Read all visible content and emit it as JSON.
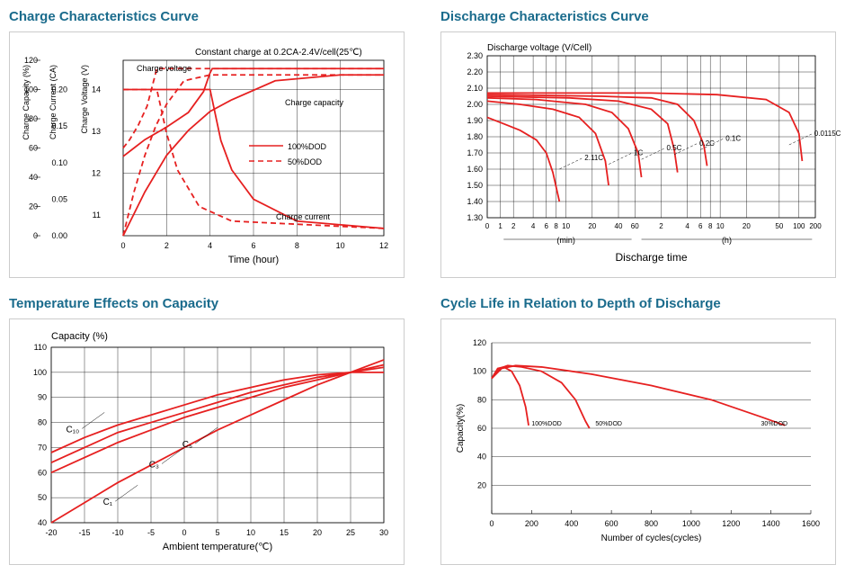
{
  "colors": {
    "title": "#1a6b8c",
    "curve": "#e62020",
    "axis": "#000000",
    "grid": "#000000",
    "border": "#cccccc",
    "bg": "#ffffff"
  },
  "charge": {
    "title": "Charge Characteristics Curve",
    "subtitle": "Constant charge at 0.2CA-2.4V/cell(25℃)",
    "y_labels": [
      "Charge Capacity (%)",
      "Charge Current (CA)",
      "Charge Voltage (V)"
    ],
    "x_label": "Time (hour)",
    "x_ticks": [
      0,
      2,
      4,
      6,
      8,
      10,
      12
    ],
    "cap_ticks": [
      0,
      20,
      40,
      60,
      80,
      100,
      120
    ],
    "cur_ticks": [
      0,
      0.05,
      0.1,
      0.15,
      0.2
    ],
    "volt_ticks": [
      11,
      12,
      13,
      14
    ],
    "labels": {
      "cv": "Charge voltage",
      "cc": "Charge capacity",
      "ci": "Charge current"
    },
    "legend": [
      "100%DOD",
      "50%DOD"
    ],
    "curves": {
      "cap100": [
        [
          0,
          0
        ],
        [
          1,
          30
        ],
        [
          2,
          55
        ],
        [
          3,
          72
        ],
        [
          4,
          85
        ],
        [
          5,
          93
        ],
        [
          7,
          106
        ],
        [
          10,
          110
        ],
        [
          12,
          110
        ]
      ],
      "cap50": [
        [
          0,
          0
        ],
        [
          0.5,
          30
        ],
        [
          1,
          55
        ],
        [
          1.5,
          75
        ],
        [
          2,
          90
        ],
        [
          2.8,
          106
        ],
        [
          4,
          110
        ],
        [
          12,
          110
        ]
      ],
      "volt100": [
        [
          0,
          12.4
        ],
        [
          0.5,
          12.6
        ],
        [
          1,
          12.8
        ],
        [
          2,
          13.1
        ],
        [
          3,
          13.45
        ],
        [
          3.7,
          13.95
        ],
        [
          4,
          14.4
        ],
        [
          4.1,
          14.5
        ],
        [
          12,
          14.5
        ]
      ],
      "volt50": [
        [
          0,
          12.6
        ],
        [
          0.3,
          12.8
        ],
        [
          0.7,
          13.15
        ],
        [
          1.1,
          13.6
        ],
        [
          1.4,
          14.2
        ],
        [
          1.55,
          14.5
        ],
        [
          12,
          14.5
        ]
      ],
      "cur100": [
        [
          0,
          0.2
        ],
        [
          4,
          0.2
        ],
        [
          4.5,
          0.13
        ],
        [
          5,
          0.09
        ],
        [
          6,
          0.05
        ],
        [
          8,
          0.02
        ],
        [
          12,
          0.01
        ]
      ],
      "cur50": [
        [
          0,
          0.2
        ],
        [
          1.55,
          0.2
        ],
        [
          2,
          0.14
        ],
        [
          2.5,
          0.09
        ],
        [
          3.5,
          0.04
        ],
        [
          5,
          0.02
        ],
        [
          12,
          0.01
        ]
      ]
    }
  },
  "discharge": {
    "title": "Discharge Characteristics Curve",
    "y_label": "Discharge voltage (V/Cell)",
    "x_label": "Discharge time",
    "x_sublabels": [
      "(min)",
      "(h)"
    ],
    "y_ticks": [
      1.3,
      1.4,
      1.5,
      1.6,
      1.7,
      1.8,
      1.9,
      2.0,
      2.1,
      2.2,
      2.3
    ],
    "x_tick_labels": [
      "0",
      "1",
      "2",
      "4",
      "6",
      "8",
      "10",
      "20",
      "40",
      "60",
      "2",
      "4",
      "6",
      "8",
      "10",
      "20",
      "50",
      "100",
      "200"
    ],
    "x_tick_pos": [
      0,
      0.04,
      0.08,
      0.14,
      0.18,
      0.21,
      0.24,
      0.32,
      0.4,
      0.45,
      0.53,
      0.61,
      0.65,
      0.68,
      0.71,
      0.79,
      0.89,
      0.95,
      1.0
    ],
    "curve_labels": [
      {
        "t": "2.11C",
        "p": 0.22
      },
      {
        "t": "1C",
        "p": 0.37
      },
      {
        "t": "0.5C",
        "p": 0.47
      },
      {
        "t": "0.2C",
        "p": 0.57
      },
      {
        "t": "0.1C",
        "p": 0.65
      },
      {
        "t": "0.0115C",
        "p": 0.92
      }
    ],
    "curves": [
      [
        [
          0,
          1.92
        ],
        [
          0.05,
          1.88
        ],
        [
          0.1,
          1.84
        ],
        [
          0.15,
          1.78
        ],
        [
          0.18,
          1.7
        ],
        [
          0.2,
          1.58
        ],
        [
          0.22,
          1.4
        ]
      ],
      [
        [
          0,
          2.02
        ],
        [
          0.1,
          2.0
        ],
        [
          0.2,
          1.97
        ],
        [
          0.28,
          1.92
        ],
        [
          0.33,
          1.82
        ],
        [
          0.36,
          1.65
        ],
        [
          0.37,
          1.5
        ]
      ],
      [
        [
          0,
          2.04
        ],
        [
          0.15,
          2.03
        ],
        [
          0.3,
          2.0
        ],
        [
          0.38,
          1.95
        ],
        [
          0.43,
          1.85
        ],
        [
          0.46,
          1.7
        ],
        [
          0.47,
          1.55
        ]
      ],
      [
        [
          0,
          2.05
        ],
        [
          0.25,
          2.04
        ],
        [
          0.4,
          2.02
        ],
        [
          0.5,
          1.97
        ],
        [
          0.55,
          1.88
        ],
        [
          0.57,
          1.72
        ],
        [
          0.58,
          1.58
        ]
      ],
      [
        [
          0,
          2.06
        ],
        [
          0.35,
          2.05
        ],
        [
          0.5,
          2.04
        ],
        [
          0.58,
          2.0
        ],
        [
          0.63,
          1.9
        ],
        [
          0.66,
          1.75
        ],
        [
          0.67,
          1.62
        ]
      ],
      [
        [
          0,
          2.07
        ],
        [
          0.5,
          2.07
        ],
        [
          0.7,
          2.06
        ],
        [
          0.85,
          2.03
        ],
        [
          0.92,
          1.95
        ],
        [
          0.95,
          1.82
        ],
        [
          0.96,
          1.65
        ]
      ]
    ]
  },
  "temp": {
    "title": "Temperature Effects on Capacity",
    "y_label": "Capacity (%)",
    "x_label": "Ambient temperature(℃)",
    "x_ticks": [
      -20,
      -15,
      -10,
      -5,
      0,
      5,
      10,
      15,
      20,
      25,
      30
    ],
    "y_ticks": [
      40,
      50,
      60,
      70,
      80,
      90,
      100,
      110
    ],
    "curve_labels": [
      "C₁₀",
      "C₅",
      "C₃",
      "C₁"
    ],
    "curves": {
      "C10": [
        [
          -20,
          68
        ],
        [
          -15,
          74
        ],
        [
          -10,
          79
        ],
        [
          -5,
          83
        ],
        [
          0,
          87
        ],
        [
          5,
          91
        ],
        [
          10,
          94
        ],
        [
          15,
          97
        ],
        [
          20,
          99
        ],
        [
          25,
          100
        ],
        [
          30,
          105
        ]
      ],
      "C5": [
        [
          -20,
          64
        ],
        [
          -15,
          70
        ],
        [
          -10,
          76
        ],
        [
          -5,
          80
        ],
        [
          0,
          84
        ],
        [
          5,
          88
        ],
        [
          10,
          92
        ],
        [
          15,
          95
        ],
        [
          20,
          98
        ],
        [
          25,
          100
        ],
        [
          30,
          103
        ]
      ],
      "C3": [
        [
          -20,
          60
        ],
        [
          -15,
          66
        ],
        [
          -10,
          72
        ],
        [
          -5,
          77
        ],
        [
          0,
          82
        ],
        [
          5,
          86
        ],
        [
          10,
          90
        ],
        [
          15,
          94
        ],
        [
          20,
          97
        ],
        [
          25,
          100
        ],
        [
          30,
          102
        ]
      ],
      "C1": [
        [
          -20,
          40
        ],
        [
          -15,
          48
        ],
        [
          -10,
          56
        ],
        [
          -5,
          63
        ],
        [
          0,
          70
        ],
        [
          5,
          77
        ],
        [
          10,
          83
        ],
        [
          15,
          89
        ],
        [
          20,
          95
        ],
        [
          25,
          100
        ],
        [
          30,
          100
        ]
      ]
    }
  },
  "cycle": {
    "title": "Cycle Life in Relation to Depth of Discharge",
    "y_label": "Capacity(%)",
    "x_label": "Number of cycles(cycles)",
    "x_ticks": [
      0,
      200,
      400,
      600,
      800,
      1000,
      1200,
      1400,
      1600
    ],
    "y_ticks": [
      20,
      40,
      60,
      80,
      100,
      120
    ],
    "legend": [
      {
        "t": "100%DOD",
        "x": 200
      },
      {
        "t": "50%DOD",
        "x": 520
      },
      {
        "t": "30%DOD",
        "x": 1350
      }
    ],
    "curves": {
      "d100": [
        [
          0,
          95
        ],
        [
          30,
          102
        ],
        [
          60,
          103
        ],
        [
          100,
          100
        ],
        [
          140,
          90
        ],
        [
          170,
          75
        ],
        [
          185,
          62
        ]
      ],
      "d50": [
        [
          0,
          95
        ],
        [
          40,
          102
        ],
        [
          80,
          104
        ],
        [
          150,
          103
        ],
        [
          250,
          100
        ],
        [
          350,
          92
        ],
        [
          420,
          80
        ],
        [
          470,
          65
        ],
        [
          490,
          60
        ]
      ],
      "d30": [
        [
          0,
          95
        ],
        [
          50,
          102
        ],
        [
          120,
          104
        ],
        [
          250,
          103
        ],
        [
          500,
          98
        ],
        [
          800,
          90
        ],
        [
          1100,
          80
        ],
        [
          1350,
          68
        ],
        [
          1470,
          62
        ]
      ]
    }
  }
}
